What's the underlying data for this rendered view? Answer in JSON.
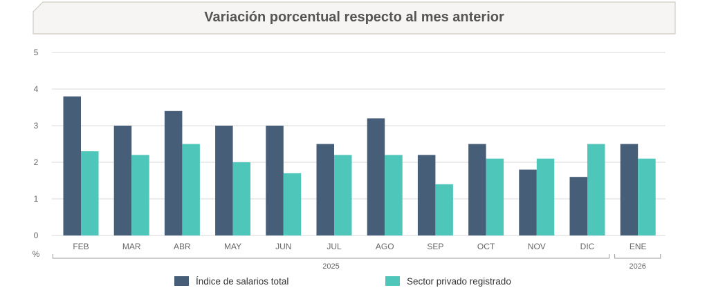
{
  "chart_data": {
    "type": "bar",
    "title": "Variación porcentual respecto al mes anterior",
    "ylabel": "%",
    "ylim": [
      0,
      5
    ],
    "yticks": [
      0,
      1,
      2,
      3,
      4,
      5
    ],
    "categories": [
      "FEB",
      "MAR",
      "ABR",
      "MAY",
      "JUN",
      "JUL",
      "AGO",
      "SEP",
      "OCT",
      "NOV",
      "DIC",
      "ENE"
    ],
    "year_groups": [
      {
        "label": "2025",
        "from": 0,
        "to": 10
      },
      {
        "label": "2026",
        "from": 11,
        "to": 11
      }
    ],
    "series": [
      {
        "name": "Índice de salarios total",
        "color": "#475e78",
        "values": [
          3.8,
          3.0,
          3.4,
          3.0,
          3.0,
          2.5,
          3.2,
          2.2,
          2.5,
          1.8,
          1.6,
          2.5
        ]
      },
      {
        "name": "Sector privado registrado",
        "color": "#4fc6ba",
        "values": [
          2.3,
          2.2,
          2.5,
          2.0,
          1.7,
          2.2,
          2.2,
          1.4,
          2.1,
          2.1,
          2.5,
          2.1
        ]
      }
    ],
    "legend_position": "bottom"
  },
  "colors": {
    "title_banner_fill": "#f6f5f3",
    "title_banner_stroke": "#cfc9c1",
    "title_text": "#555555",
    "grid": "#d9d9d9",
    "axis_text": "#666666"
  }
}
